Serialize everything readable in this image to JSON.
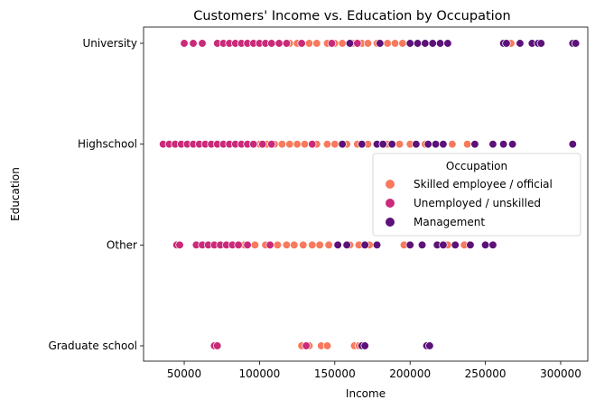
{
  "chart_data": {
    "type": "scatter",
    "title": "Customers' Income vs. Education by Occupation",
    "xlabel": "Income",
    "ylabel": "Education",
    "categories": [
      "University",
      "Highschool",
      "Other",
      "Graduate school"
    ],
    "xlim": [
      23000,
      318000
    ],
    "xticks": [
      50000,
      100000,
      150000,
      200000,
      250000,
      300000
    ],
    "grid": false,
    "legend": {
      "title": "Occupation",
      "placement": "center-right",
      "entries": [
        "Skilled employee / official",
        "Unemployed / unskilled",
        "Management"
      ]
    },
    "colors": {
      "Skilled employee / official": "#f8795d",
      "Unemployed / unskilled": "#ca2a79",
      "Management": "#5c1279"
    },
    "series": [
      {
        "name": "Skilled employee / official",
        "points": [
          [
            "University",
            120000
          ],
          [
            "University",
            125000
          ],
          [
            "University",
            133000
          ],
          [
            "University",
            138000
          ],
          [
            "University",
            145000
          ],
          [
            "University",
            150000
          ],
          [
            "University",
            155000
          ],
          [
            "University",
            162000
          ],
          [
            "University",
            168000
          ],
          [
            "University",
            172000
          ],
          [
            "University",
            178000
          ],
          [
            "University",
            185000
          ],
          [
            "University",
            190000
          ],
          [
            "University",
            195000
          ],
          [
            "University",
            200000
          ],
          [
            "University",
            267000
          ],
          [
            "Highschool",
            95000
          ],
          [
            "Highschool",
            100000
          ],
          [
            "Highschool",
            105000
          ],
          [
            "Highschool",
            110000
          ],
          [
            "Highschool",
            115000
          ],
          [
            "Highschool",
            120000
          ],
          [
            "Highschool",
            125000
          ],
          [
            "Highschool",
            130000
          ],
          [
            "Highschool",
            138000
          ],
          [
            "Highschool",
            145000
          ],
          [
            "Highschool",
            150000
          ],
          [
            "Highschool",
            158000
          ],
          [
            "Highschool",
            165000
          ],
          [
            "Highschool",
            172000
          ],
          [
            "Highschool",
            185000
          ],
          [
            "Highschool",
            193000
          ],
          [
            "Highschool",
            200000
          ],
          [
            "Highschool",
            210000
          ],
          [
            "Highschool",
            228000
          ],
          [
            "Highschool",
            238000
          ],
          [
            "Other",
            90000
          ],
          [
            "Other",
            97000
          ],
          [
            "Other",
            104000
          ],
          [
            "Other",
            112000
          ],
          [
            "Other",
            118000
          ],
          [
            "Other",
            123000
          ],
          [
            "Other",
            129000
          ],
          [
            "Other",
            135000
          ],
          [
            "Other",
            140000
          ],
          [
            "Other",
            146000
          ],
          [
            "Other",
            160000
          ],
          [
            "Other",
            166000
          ],
          [
            "Other",
            173000
          ],
          [
            "Other",
            196000
          ],
          [
            "Other",
            225000
          ],
          [
            "Other",
            236000
          ],
          [
            "Graduate school",
            128000
          ],
          [
            "Graduate school",
            133000
          ],
          [
            "Graduate school",
            141000
          ],
          [
            "Graduate school",
            145000
          ],
          [
            "Graduate school",
            163000
          ],
          [
            "Graduate school",
            166000
          ]
        ]
      },
      {
        "name": "Unemployed / unskilled",
        "points": [
          [
            "University",
            50000
          ],
          [
            "University",
            56000
          ],
          [
            "University",
            62000
          ],
          [
            "University",
            72000
          ],
          [
            "University",
            76000
          ],
          [
            "University",
            80000
          ],
          [
            "University",
            84000
          ],
          [
            "University",
            88000
          ],
          [
            "University",
            92000
          ],
          [
            "University",
            96000
          ],
          [
            "University",
            100000
          ],
          [
            "University",
            104000
          ],
          [
            "University",
            108000
          ],
          [
            "University",
            113000
          ],
          [
            "University",
            118000
          ],
          [
            "University",
            128000
          ],
          [
            "University",
            148000
          ],
          [
            "University",
            165000
          ],
          [
            "Highschool",
            36000
          ],
          [
            "Highschool",
            40000
          ],
          [
            "Highschool",
            44000
          ],
          [
            "Highschool",
            48000
          ],
          [
            "Highschool",
            52000
          ],
          [
            "Highschool",
            56000
          ],
          [
            "Highschool",
            60000
          ],
          [
            "Highschool",
            64000
          ],
          [
            "Highschool",
            68000
          ],
          [
            "Highschool",
            72000
          ],
          [
            "Highschool",
            76000
          ],
          [
            "Highschool",
            80000
          ],
          [
            "Highschool",
            84000
          ],
          [
            "Highschool",
            88000
          ],
          [
            "Highschool",
            92000
          ],
          [
            "Highschool",
            96000
          ],
          [
            "Highschool",
            102000
          ],
          [
            "Highschool",
            108000
          ],
          [
            "Highschool",
            135000
          ],
          [
            "Other",
            45000
          ],
          [
            "Other",
            47000
          ],
          [
            "Other",
            58000
          ],
          [
            "Other",
            62000
          ],
          [
            "Other",
            66000
          ],
          [
            "Other",
            70000
          ],
          [
            "Other",
            74000
          ],
          [
            "Other",
            78000
          ],
          [
            "Other",
            82000
          ],
          [
            "Other",
            86000
          ],
          [
            "Other",
            92000
          ],
          [
            "Other",
            107000
          ],
          [
            "Graduate school",
            70000
          ],
          [
            "Graduate school",
            72000
          ],
          [
            "Graduate school",
            131000
          ]
        ]
      },
      {
        "name": "Management",
        "points": [
          [
            "University",
            160000
          ],
          [
            "University",
            180000
          ],
          [
            "University",
            200000
          ],
          [
            "University",
            205000
          ],
          [
            "University",
            210000
          ],
          [
            "University",
            215000
          ],
          [
            "University",
            220000
          ],
          [
            "University",
            225000
          ],
          [
            "University",
            262000
          ],
          [
            "University",
            264000
          ],
          [
            "University",
            273000
          ],
          [
            "University",
            281000
          ],
          [
            "University",
            285000
          ],
          [
            "University",
            287000
          ],
          [
            "University",
            308000
          ],
          [
            "University",
            310000
          ],
          [
            "Highschool",
            155000
          ],
          [
            "Highschool",
            168000
          ],
          [
            "Highschool",
            178000
          ],
          [
            "Highschool",
            182000
          ],
          [
            "Highschool",
            188000
          ],
          [
            "Highschool",
            204000
          ],
          [
            "Highschool",
            212000
          ],
          [
            "Highschool",
            217000
          ],
          [
            "Highschool",
            222000
          ],
          [
            "Highschool",
            243000
          ],
          [
            "Highschool",
            255000
          ],
          [
            "Highschool",
            262000
          ],
          [
            "Highschool",
            268000
          ],
          [
            "Highschool",
            308000
          ],
          [
            "Other",
            152000
          ],
          [
            "Other",
            158000
          ],
          [
            "Other",
            170000
          ],
          [
            "Other",
            178000
          ],
          [
            "Other",
            200000
          ],
          [
            "Other",
            208000
          ],
          [
            "Other",
            218000
          ],
          [
            "Other",
            222000
          ],
          [
            "Other",
            230000
          ],
          [
            "Other",
            240000
          ],
          [
            "Other",
            250000
          ],
          [
            "Other",
            255000
          ],
          [
            "Graduate school",
            168000
          ],
          [
            "Graduate school",
            170000
          ],
          [
            "Graduate school",
            211000
          ],
          [
            "Graduate school",
            213000
          ]
        ]
      }
    ]
  }
}
